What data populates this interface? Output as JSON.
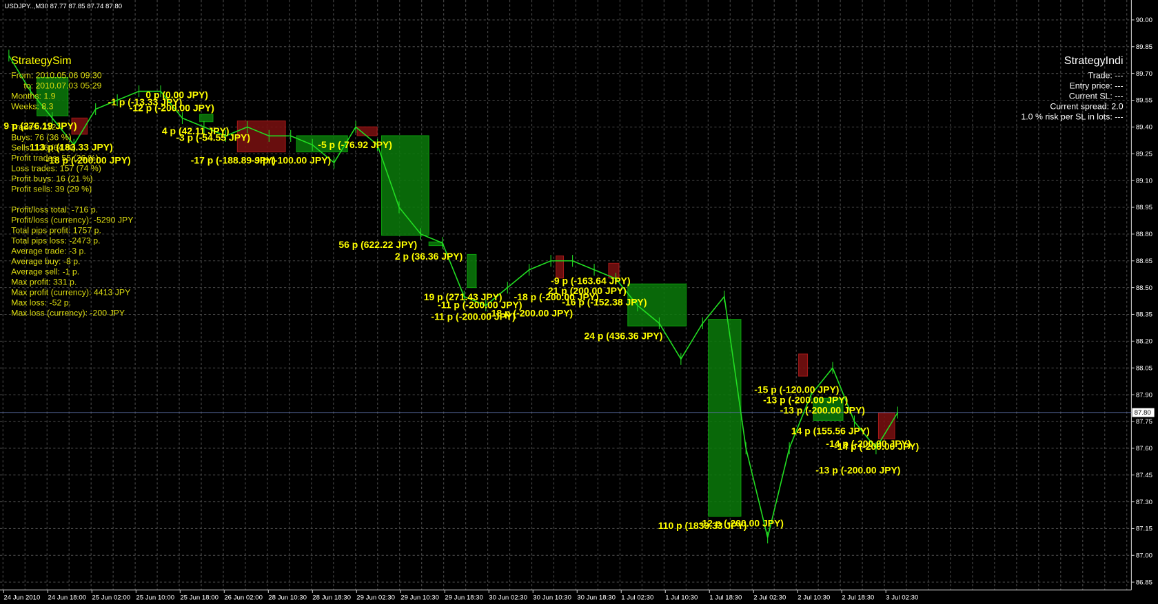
{
  "header": "USDJPY..,M30  87.77 87.85 87.74 87.80",
  "left_panel": {
    "title": "StrategySim",
    "period": [
      "From: 2010.05.06 09:30",
      "to: 2010.07.03 05:29",
      "Months: 1.9",
      "Weeks: 8.3"
    ],
    "trades": [
      "Trades: 212",
      "Buys: 76 (36 %)",
      "Sells: 136 (64 %)",
      "Profit trades: 55 (26 %)",
      "Loss trades: 157 (74 %)",
      "Profit buys: 16 (21 %)",
      "Profit sells: 39 (29 %)"
    ],
    "results": [
      "Profit/loss total: -716 p.",
      "Profit/loss (currency): -5290 JPY",
      "Total pips profit: 1757 p.",
      "Total pips loss: -2473 p.",
      "Average trade: -3 p.",
      "Average buy: -8 p.",
      "Average sell: -1 p.",
      "Max profit: 331 p.",
      "Max profit (currency): 4413 JPY",
      "Max loss: -52 p.",
      "Max loss (currency): -200 JPY"
    ]
  },
  "right_panel": {
    "title": "StrategyIndi",
    "lines": [
      "Trade: ---",
      "Entry price: ---",
      "Current SL: ---",
      "Current spread: 2.0",
      "1.0 % risk per SL in lots: ---"
    ]
  },
  "price_axis": {
    "ticks": [
      {
        "value": 90,
        "label": "90.00"
      },
      89.85,
      {
        "value": 89.7,
        "label": "89.70"
      },
      89.55,
      {
        "value": 89.4,
        "label": "89.40"
      },
      89.25,
      {
        "value": 89.1,
        "label": "89.10"
      },
      88.95,
      {
        "value": 88.8,
        "label": "88.80"
      },
      88.65,
      {
        "value": 88.5,
        "label": "88.50"
      },
      88.35,
      {
        "value": 88.2,
        "label": "88.20"
      },
      88.05,
      {
        "value": 87.9,
        "label": "87.90"
      },
      87.75,
      {
        "value": 87.6,
        "label": "87.60"
      },
      87.45,
      {
        "value": 87.3,
        "label": "87.30"
      },
      87.15,
      {
        "value": 87,
        "label": "87.00"
      },
      86.85
    ],
    "current": {
      "value": 87.8,
      "label": "87.80"
    }
  },
  "time_axis": [
    "24 Jun 2010",
    "24 Jun 18:00",
    "25 Jun 02:00",
    "25 Jun 10:00",
    "25 Jun 18:00",
    "26 Jun 02:00",
    "28 Jun 10:30",
    "28 Jun 18:30",
    "29 Jun 02:30",
    "29 Jun 10:30",
    "29 Jun 18:30",
    "30 Jun 02:30",
    "30 Jun 10:30",
    "30 Jun 18:30",
    "1 Jul 02:30",
    "1 Jul 10:30",
    "1 Jul 18:30",
    "2 Jul 02:30",
    "2 Jul 10:30",
    "2 Jul 18:30",
    "3 Jul 02:30"
  ],
  "price_path": [
    89.8,
    89.6,
    89.45,
    89.3,
    89.5,
    89.55,
    89.6,
    89.6,
    89.45,
    89.4,
    89.35,
    89.4,
    89.35,
    89.35,
    89.3,
    89.2,
    89.4,
    89.3,
    88.95,
    88.8,
    88.75,
    88.45,
    88.4,
    88.5,
    88.6,
    88.65,
    88.65,
    88.6,
    88.55,
    88.4,
    88.3,
    88.1,
    88.3,
    88.45,
    87.6,
    87.1,
    87.6,
    87.9,
    88.05,
    87.75,
    87.6,
    87.8
  ],
  "trade_labels": [
    "9 p (276.19 JPY)",
    "113 p (183.33 JPY)",
    "-18 p (-200.00 JPY)",
    "-1 p (-13.33 JPY)",
    "0 p (0.00 JPY)",
    "-12 p (-200.00 JPY)",
    "4 p (42.11 JPY)",
    "-3 p (-54.55 JPY)",
    "-17 p (-188.89 JPY)",
    "-9 p (-100.00 JPY)",
    "-5 p (-76.92 JPY)",
    "56 p (622.22 JPY)",
    "2 p (36.36 JPY)",
    "19 p (271.43 JPY)",
    "-11 p (-200.00 JPY)",
    "-11 p (-200.00 JPY)",
    "-18 p (-200.00 JPY)",
    "-18 p (-200.00 JPY)",
    "-9 p (-163.64 JPY)",
    "21 p (200.00 JPY)",
    "-16 p (-152.38 JPY)",
    "24 p (436.36 JPY)",
    "-15 p (-120.00 JPY)",
    "-13 p (-200.00 JPY)",
    "-13 p (-200.00 JPY)",
    "14 p (155.56 JPY)",
    "-14 p (-200.00 JPY)",
    "-14 p (-200.00 JPY)",
    "-13 p (-200.00 JPY)",
    "110 p (1833.33 JPY)",
    "-12 p (-200.00 JPY)"
  ]
}
